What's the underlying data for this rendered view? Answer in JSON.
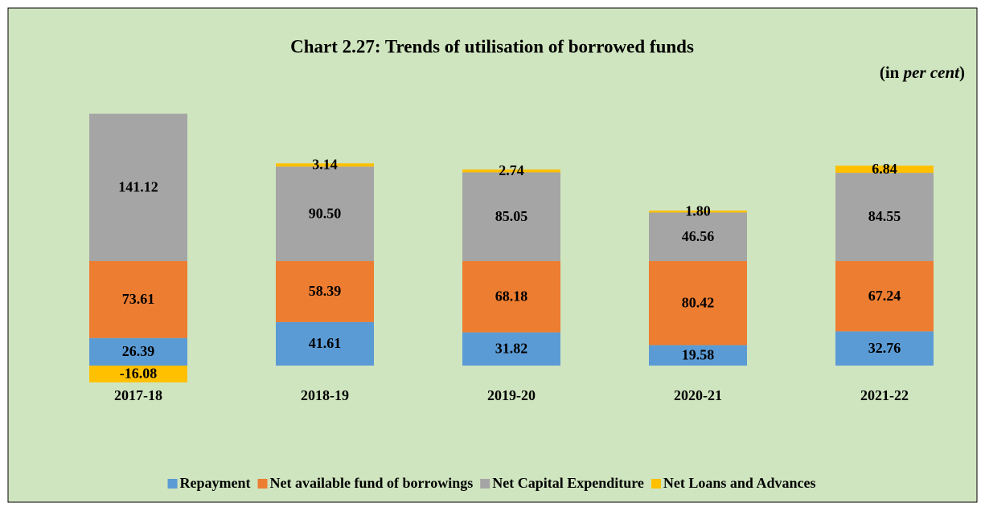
{
  "chart_data": {
    "type": "stacked_bar",
    "title": "Chart 2.27: Trends of utilisation of borrowed funds",
    "unit": [
      "(in ",
      "per cent",
      ")"
    ],
    "categories": [
      "2017-18",
      "2018-19",
      "2019-20",
      "2020-21",
      "2021-22"
    ],
    "series": [
      {
        "name": "Repayment",
        "color": "#5b9bd5",
        "values": [
          26.39,
          41.61,
          31.82,
          19.58,
          32.76
        ],
        "value_labels": [
          "26.39",
          "41.61",
          "31.82",
          "19.58",
          "32.76"
        ]
      },
      {
        "name": "Net available fund of borrowings",
        "color": "#ed7d31",
        "values": [
          73.61,
          58.39,
          68.18,
          80.42,
          67.24
        ],
        "value_labels": [
          "73.61",
          "58.39",
          "68.18",
          "80.42",
          "67.24"
        ]
      },
      {
        "name": "Net Capital Expenditure",
        "color": "#a5a5a5",
        "values": [
          141.12,
          90.5,
          85.05,
          46.56,
          84.55
        ],
        "value_labels": [
          "141.12",
          "90.50",
          "85.05",
          "46.56",
          "84.55"
        ]
      },
      {
        "name": "Net Loans and Advances",
        "color": "#ffc000",
        "values": [
          -16.08,
          3.14,
          2.74,
          1.8,
          6.84
        ],
        "value_labels": [
          "-16.08",
          "3.14",
          "2.74",
          "1.80",
          "6.84"
        ]
      }
    ],
    "ylim": [
      -50,
      250
    ]
  }
}
